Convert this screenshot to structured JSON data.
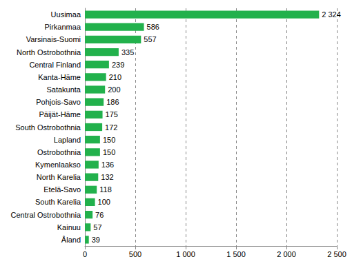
{
  "chart_data": {
    "type": "bar",
    "orientation": "horizontal",
    "categories": [
      "Uusimaa",
      "Pirkanmaa",
      "Varsinais-Suomi",
      "North Ostrobothnia",
      "Central Finland",
      "Kanta-Häme",
      "Satakunta",
      "Pohjois-Savo",
      "Päijät-Häme",
      "South Ostrobothnia",
      "Lapland",
      "Ostrobothnia",
      "Kymenlaakso",
      "North Karelia",
      "Etelä-Savo",
      "South Karelia",
      "Central Ostrobothnia",
      "Kainuu",
      "Åland"
    ],
    "values": [
      2324,
      586,
      557,
      335,
      239,
      210,
      200,
      186,
      175,
      172,
      150,
      150,
      136,
      132,
      118,
      100,
      76,
      57,
      39
    ],
    "value_labels": [
      "2 324",
      "586",
      "557",
      "335",
      "239",
      "210",
      "200",
      "186",
      "175",
      "172",
      "150",
      "150",
      "136",
      "132",
      "118",
      "100",
      "76",
      "57",
      "39"
    ],
    "color": "#22b14c",
    "xlim": [
      0,
      2500
    ],
    "xticks": [
      0,
      500,
      {
        "value": 1000,
        "label": "1 000"
      },
      {
        "value": 1500,
        "label": "1 500"
      },
      {
        "value": 2000,
        "label": "2 000"
      },
      {
        "value": 2500,
        "label": "2 500"
      }
    ],
    "grid": true,
    "data_labels": true
  }
}
